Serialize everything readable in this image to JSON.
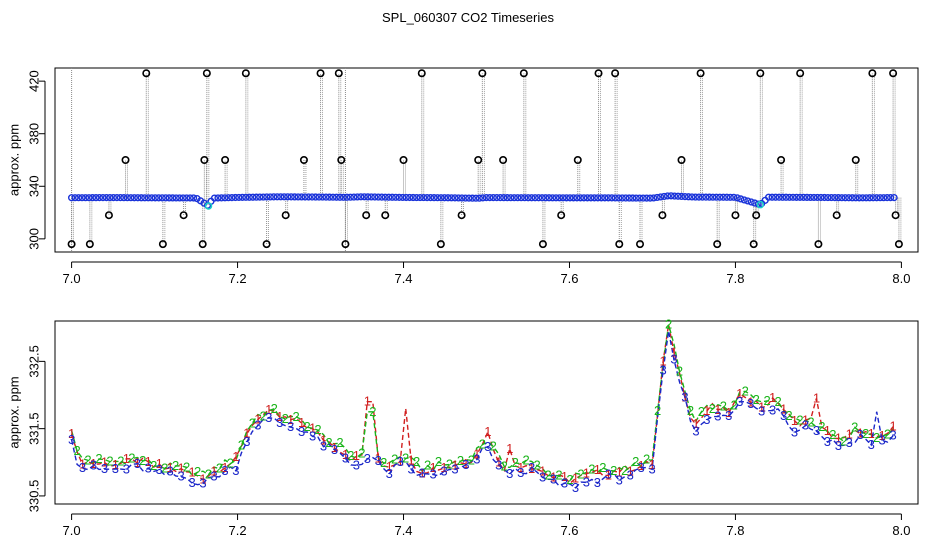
{
  "title": "SPL_060307  CO2 Timeseries",
  "chart_data": [
    {
      "type": "scatter",
      "panel": "top",
      "title": "SPL_060307  CO2 Timeseries",
      "xlabel": "",
      "ylabel": "approx. ppm",
      "xlim": [
        6.98,
        8.02
      ],
      "ylim": [
        290,
        430
      ],
      "xticks": [
        7.0,
        7.2,
        7.4,
        7.6,
        7.8,
        8.0
      ],
      "xtick_labels": [
        "7.0",
        "7.2",
        "7.4",
        "7.6",
        "7.8",
        "8.0"
      ],
      "yticks": [
        300,
        340,
        380,
        420
      ],
      "ytick_labels": [
        "300",
        "340",
        "380",
        "420"
      ],
      "baseline_points": [
        [
          7.0,
          331.3
        ],
        [
          7.05,
          331.4
        ],
        [
          7.1,
          331.2
        ],
        [
          7.15,
          331.1
        ],
        [
          7.165,
          325.0
        ],
        [
          7.17,
          331.0
        ],
        [
          7.2,
          331.5
        ],
        [
          7.25,
          332.0
        ],
        [
          7.3,
          331.8
        ],
        [
          7.33,
          331.6
        ],
        [
          7.35,
          332.0
        ],
        [
          7.4,
          331.5
        ],
        [
          7.45,
          331.3
        ],
        [
          7.49,
          330.9
        ],
        [
          7.5,
          331.4
        ],
        [
          7.55,
          331.3
        ],
        [
          7.6,
          331.2
        ],
        [
          7.65,
          331.2
        ],
        [
          7.66,
          331.1
        ],
        [
          7.7,
          331.0
        ],
        [
          7.72,
          332.8
        ],
        [
          7.75,
          331.8
        ],
        [
          7.8,
          331.6
        ],
        [
          7.83,
          326.0
        ],
        [
          7.84,
          331.7
        ],
        [
          7.9,
          331.5
        ],
        [
          7.95,
          331.2
        ],
        [
          7.99,
          331.4
        ]
      ],
      "spikes": [
        [
          7.0,
          296
        ],
        [
          7.022,
          296
        ],
        [
          7.045,
          318
        ],
        [
          7.065,
          360
        ],
        [
          7.09,
          426
        ],
        [
          7.11,
          296
        ],
        [
          7.135,
          318
        ],
        [
          7.158,
          296
        ],
        [
          7.16,
          360
        ],
        [
          7.163,
          426
        ],
        [
          7.185,
          360
        ],
        [
          7.21,
          426
        ],
        [
          7.235,
          296
        ],
        [
          7.258,
          318
        ],
        [
          7.28,
          360
        ],
        [
          7.3,
          426
        ],
        [
          7.322,
          426
        ],
        [
          7.325,
          360
        ],
        [
          7.33,
          296
        ],
        [
          7.355,
          318
        ],
        [
          7.378,
          318
        ],
        [
          7.4,
          360
        ],
        [
          7.422,
          426
        ],
        [
          7.445,
          296
        ],
        [
          7.47,
          318
        ],
        [
          7.49,
          360
        ],
        [
          7.495,
          426
        ],
        [
          7.52,
          360
        ],
        [
          7.545,
          426
        ],
        [
          7.568,
          296
        ],
        [
          7.59,
          318
        ],
        [
          7.61,
          360
        ],
        [
          7.635,
          426
        ],
        [
          7.655,
          426
        ],
        [
          7.66,
          296
        ],
        [
          7.685,
          296
        ],
        [
          7.712,
          318
        ],
        [
          7.735,
          360
        ],
        [
          7.758,
          426
        ],
        [
          7.778,
          296
        ],
        [
          7.8,
          318
        ],
        [
          7.822,
          296
        ],
        [
          7.825,
          318
        ],
        [
          7.83,
          426
        ],
        [
          7.855,
          360
        ],
        [
          7.878,
          426
        ],
        [
          7.9,
          296
        ],
        [
          7.922,
          318
        ],
        [
          7.945,
          360
        ],
        [
          7.965,
          426
        ],
        [
          7.99,
          426
        ],
        [
          7.993,
          318
        ],
        [
          7.997,
          296
        ]
      ],
      "colors": {
        "baseline": "#1a33d9",
        "accent": "#19d1c8",
        "spike_marker": "#000000",
        "spike_line": "#8c8c8c"
      }
    },
    {
      "type": "line",
      "panel": "bottom",
      "xlabel": "",
      "ylabel": "approx. ppm",
      "xlim": [
        6.98,
        8.02
      ],
      "ylim": [
        330.38,
        333.1
      ],
      "xticks": [
        7.0,
        7.2,
        7.4,
        7.6,
        7.8,
        8.0
      ],
      "xtick_labels": [
        "7.0",
        "7.2",
        "7.4",
        "7.6",
        "7.8",
        "8.0"
      ],
      "yticks": [
        330.5,
        331.5,
        332.5
      ],
      "ytick_labels": [
        "330.5",
        "331.5",
        "332.5"
      ],
      "series": [
        {
          "name": "1",
          "color": "#d11f1f"
        },
        {
          "name": "2",
          "color": "#19b419"
        },
        {
          "name": "3",
          "color": "#1a26c9"
        }
      ],
      "keyframes": [
        [
          7.0,
          331.45
        ],
        [
          7.008,
          331.0
        ],
        [
          7.03,
          330.95
        ],
        [
          7.06,
          330.95
        ],
        [
          7.08,
          331.0
        ],
        [
          7.1,
          330.9
        ],
        [
          7.13,
          330.85
        ],
        [
          7.16,
          330.75
        ],
        [
          7.18,
          330.9
        ],
        [
          7.2,
          331.0
        ],
        [
          7.21,
          331.4
        ],
        [
          7.225,
          331.65
        ],
        [
          7.24,
          331.7
        ],
        [
          7.26,
          331.6
        ],
        [
          7.28,
          331.55
        ],
        [
          7.3,
          331.35
        ],
        [
          7.32,
          331.2
        ],
        [
          7.34,
          331.0
        ],
        [
          7.36,
          331.15
        ],
        [
          7.38,
          330.9
        ],
        [
          7.4,
          331.05
        ],
        [
          7.42,
          330.85
        ],
        [
          7.45,
          330.9
        ],
        [
          7.48,
          331.0
        ],
        [
          7.5,
          331.3
        ],
        [
          7.52,
          330.9
        ],
        [
          7.55,
          330.95
        ],
        [
          7.58,
          330.75
        ],
        [
          7.6,
          330.7
        ],
        [
          7.63,
          330.8
        ],
        [
          7.66,
          330.85
        ],
        [
          7.68,
          330.9
        ],
        [
          7.7,
          330.95
        ],
        [
          7.715,
          332.7
        ],
        [
          7.72,
          333.0
        ],
        [
          7.73,
          332.4
        ],
        [
          7.75,
          331.5
        ],
        [
          7.77,
          331.8
        ],
        [
          7.79,
          331.7
        ],
        [
          7.81,
          332.0
        ],
        [
          7.83,
          331.8
        ],
        [
          7.85,
          331.9
        ],
        [
          7.87,
          331.55
        ],
        [
          7.89,
          331.6
        ],
        [
          7.91,
          331.4
        ],
        [
          7.93,
          331.3
        ],
        [
          7.95,
          331.45
        ],
        [
          7.97,
          331.3
        ],
        [
          7.99,
          331.45
        ]
      ],
      "bumps": [
        {
          "x": 7.36,
          "series": 0,
          "value": 331.9
        },
        {
          "x": 7.36,
          "series": 1,
          "value": 331.75
        },
        {
          "x": 7.4,
          "series": 0,
          "value": 331.8
        },
        {
          "x": 7.5,
          "series": 0,
          "value": 331.45
        },
        {
          "x": 7.53,
          "series": 0,
          "value": 331.2
        },
        {
          "x": 7.9,
          "series": 0,
          "value": 331.95
        },
        {
          "x": 7.97,
          "series": 2,
          "value": 331.75
        }
      ]
    }
  ]
}
